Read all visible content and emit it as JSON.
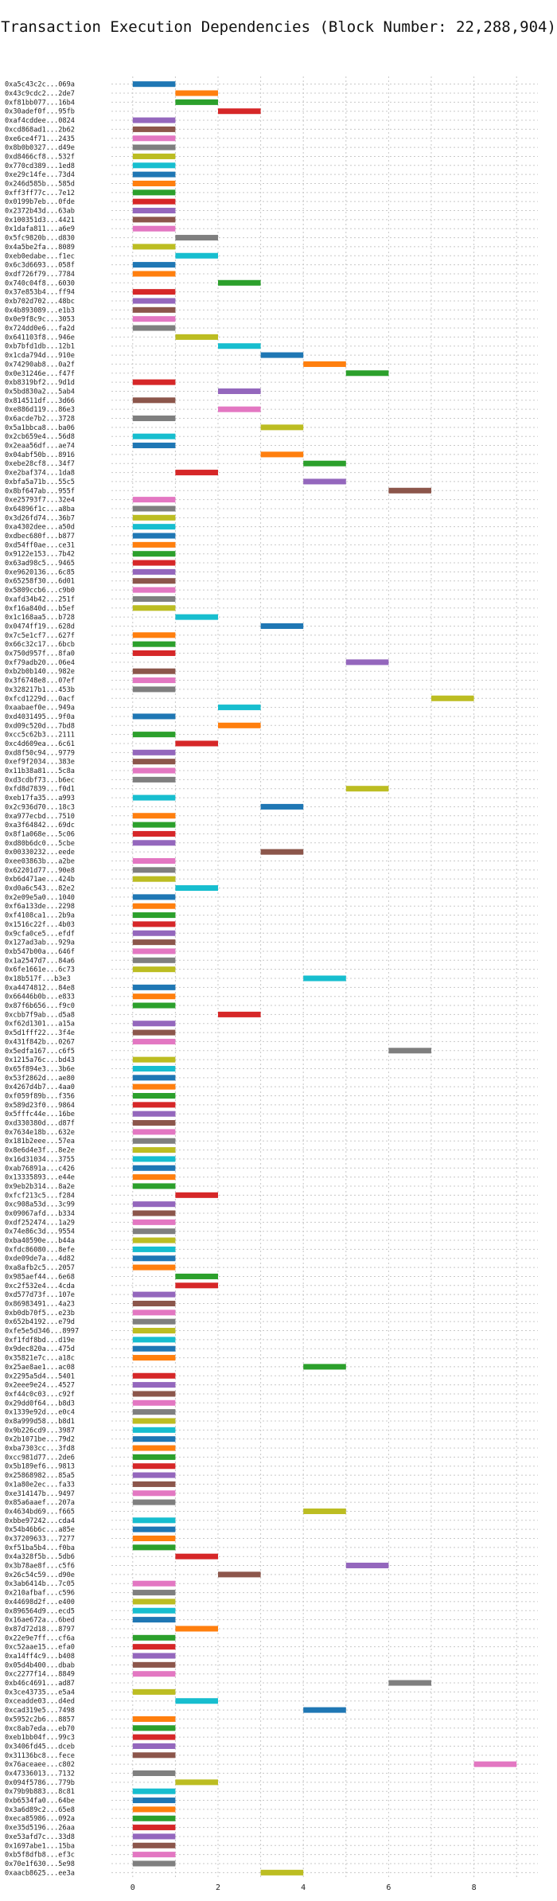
{
  "chart_data": {
    "type": "bar",
    "orientation": "horizontal-gantt",
    "title": "Transaction Execution Dependencies (Block Number: 22,288,904)",
    "xlabel": "",
    "ylabel": "",
    "xlim": [
      -0.5,
      9.5
    ],
    "xticks": [
      0,
      2,
      4,
      6,
      8
    ],
    "grid": true,
    "palette": [
      "#1f77b4",
      "#ff7f0e",
      "#2ca02c",
      "#d62728",
      "#9467bd",
      "#8c564b",
      "#e377c2",
      "#7f7f7f",
      "#bcbd22",
      "#17becf"
    ],
    "transactions": [
      {
        "tx": "0xa5c43c2c...069a",
        "start": 0
      },
      {
        "tx": "0x43c9cdc2...2de7",
        "start": 1
      },
      {
        "tx": "0xf81bb077...16b4",
        "start": 1
      },
      {
        "tx": "0x30adef0f...95fb",
        "start": 2
      },
      {
        "tx": "0xaf4cddee...0824",
        "start": 0
      },
      {
        "tx": "0xcd868ad1...2b62",
        "start": 0
      },
      {
        "tx": "0xe6ce4f71...2435",
        "start": 0
      },
      {
        "tx": "0x8b0b0327...d49e",
        "start": 0
      },
      {
        "tx": "0xd8466cf8...532f",
        "start": 0
      },
      {
        "tx": "0x770cd389...1ed8",
        "start": 0
      },
      {
        "tx": "0xe29c14fe...73d4",
        "start": 0
      },
      {
        "tx": "0x246d585b...585d",
        "start": 0
      },
      {
        "tx": "0xff3ff77c...7e12",
        "start": 0
      },
      {
        "tx": "0x0199b7eb...0fde",
        "start": 0
      },
      {
        "tx": "0x2372b43d...63ab",
        "start": 0
      },
      {
        "tx": "0x100351d3...4421",
        "start": 0
      },
      {
        "tx": "0x1dafa811...a6e9",
        "start": 0
      },
      {
        "tx": "0x5fc9820b...d830",
        "start": 1
      },
      {
        "tx": "0x4a5be2fa...8089",
        "start": 0
      },
      {
        "tx": "0xeb0edabe...f1ec",
        "start": 1
      },
      {
        "tx": "0x6c3d6693...058f",
        "start": 0
      },
      {
        "tx": "0xdf726f79...7784",
        "start": 0
      },
      {
        "tx": "0x740c04f8...6030",
        "start": 2
      },
      {
        "tx": "0x37e853b4...ff94",
        "start": 0
      },
      {
        "tx": "0xb702d702...48bc",
        "start": 0
      },
      {
        "tx": "0x4b893089...e1b3",
        "start": 0
      },
      {
        "tx": "0x0e9f8c9c...3053",
        "start": 0
      },
      {
        "tx": "0x724dd0e6...fa2d",
        "start": 0
      },
      {
        "tx": "0x641103f8...946e",
        "start": 1
      },
      {
        "tx": "0xb7bfd1db...12b1",
        "start": 2
      },
      {
        "tx": "0x1cda794d...910e",
        "start": 3
      },
      {
        "tx": "0x74290ab8...0a2f",
        "start": 4
      },
      {
        "tx": "0x0e31246e...f47f",
        "start": 5
      },
      {
        "tx": "0xb8319bf2...9d1d",
        "start": 0
      },
      {
        "tx": "0x5bd830a2...5ab4",
        "start": 2
      },
      {
        "tx": "0x814511df...3d66",
        "start": 0
      },
      {
        "tx": "0xe886d119...86e3",
        "start": 2
      },
      {
        "tx": "0x6acde7b2...3728",
        "start": 0
      },
      {
        "tx": "0x5a1bbca8...ba06",
        "start": 3
      },
      {
        "tx": "0x2cb659e4...56d8",
        "start": 0
      },
      {
        "tx": "0x2eaa56df...ae74",
        "start": 0
      },
      {
        "tx": "0x04abf50b...8916",
        "start": 3
      },
      {
        "tx": "0xebe28cf8...34f7",
        "start": 4
      },
      {
        "tx": "0xe2baf374...1da8",
        "start": 1
      },
      {
        "tx": "0xbfa5a71b...55c5",
        "start": 4
      },
      {
        "tx": "0x8bf647ab...955f",
        "start": 6
      },
      {
        "tx": "0xe25793f7...32e4",
        "start": 0
      },
      {
        "tx": "0x64896f1c...a8ba",
        "start": 0
      },
      {
        "tx": "0x3d26fd74...36b7",
        "start": 0
      },
      {
        "tx": "0xa4302dee...a50d",
        "start": 0
      },
      {
        "tx": "0xdbec680f...b877",
        "start": 0
      },
      {
        "tx": "0xd54ff0ae...ce31",
        "start": 0
      },
      {
        "tx": "0x9122e153...7b42",
        "start": 0
      },
      {
        "tx": "0x63ad98c5...9465",
        "start": 0
      },
      {
        "tx": "0xe9620136...6c85",
        "start": 0
      },
      {
        "tx": "0x65258f30...6d01",
        "start": 0
      },
      {
        "tx": "0x5809ccb6...c9b0",
        "start": 0
      },
      {
        "tx": "0xafd34b42...251f",
        "start": 0
      },
      {
        "tx": "0xf16a840d...b5ef",
        "start": 0
      },
      {
        "tx": "0x1c168aa5...b728",
        "start": 1
      },
      {
        "tx": "0x0474ff19...628d",
        "start": 3
      },
      {
        "tx": "0x7c5e1cf7...627f",
        "start": 0
      },
      {
        "tx": "0x66c32c17...6bcb",
        "start": 0
      },
      {
        "tx": "0x750d957f...8fa0",
        "start": 0
      },
      {
        "tx": "0xf79adb20...06e4",
        "start": 5
      },
      {
        "tx": "0xb2b0b140...982e",
        "start": 0
      },
      {
        "tx": "0x3f6748e8...07ef",
        "start": 0
      },
      {
        "tx": "0x328217b1...453b",
        "start": 0
      },
      {
        "tx": "0xfcd1229d...0acf",
        "start": 7
      },
      {
        "tx": "0xaabaef0e...949a",
        "start": 2
      },
      {
        "tx": "0xd4031495...9f0a",
        "start": 0
      },
      {
        "tx": "0xd09c520d...7bd8",
        "start": 2
      },
      {
        "tx": "0xcc5c62b3...2111",
        "start": 0
      },
      {
        "tx": "0xc4d609ea...6c61",
        "start": 1
      },
      {
        "tx": "0xd8f50c94...9779",
        "start": 0
      },
      {
        "tx": "0xef9f2034...383e",
        "start": 0
      },
      {
        "tx": "0x11b38a81...5c8a",
        "start": 0
      },
      {
        "tx": "0xd3cdbf73...b6ec",
        "start": 0
      },
      {
        "tx": "0xfd8d7839...f0d1",
        "start": 5
      },
      {
        "tx": "0xeb17fa35...a993",
        "start": 0
      },
      {
        "tx": "0x2c936d70...18c3",
        "start": 3
      },
      {
        "tx": "0xa977ecbd...7510",
        "start": 0
      },
      {
        "tx": "0xa3f64842...69dc",
        "start": 0
      },
      {
        "tx": "0x8f1a068e...5c06",
        "start": 0
      },
      {
        "tx": "0xd80b6dc0...5cbe",
        "start": 0
      },
      {
        "tx": "0x00330232...eede",
        "start": 3
      },
      {
        "tx": "0xee03863b...a2be",
        "start": 0
      },
      {
        "tx": "0x62201d77...90e8",
        "start": 0
      },
      {
        "tx": "0xb6d471ae...424b",
        "start": 0
      },
      {
        "tx": "0xd0a6c543...82e2",
        "start": 1
      },
      {
        "tx": "0x2e09e5a0...1040",
        "start": 0
      },
      {
        "tx": "0xf6a133de...2298",
        "start": 0
      },
      {
        "tx": "0xf4108ca1...2b9a",
        "start": 0
      },
      {
        "tx": "0x1516c22f...4b03",
        "start": 0
      },
      {
        "tx": "0x9cfa0ce5...efdf",
        "start": 0
      },
      {
        "tx": "0x127ad3ab...929a",
        "start": 0
      },
      {
        "tx": "0xb547b00a...646f",
        "start": 0
      },
      {
        "tx": "0x1a2547d7...84a6",
        "start": 0
      },
      {
        "tx": "0x6fe1661e...6c73",
        "start": 0
      },
      {
        "tx": "0x18b517f...b3e3",
        "start": 4
      },
      {
        "tx": "0xa4474812...84e8",
        "start": 0
      },
      {
        "tx": "0x66446b0b...e833",
        "start": 0
      },
      {
        "tx": "0x87f6b656...f9c0",
        "start": 0
      },
      {
        "tx": "0xcbb7f9ab...d5a8",
        "start": 2
      },
      {
        "tx": "0xf62d1301...a15a",
        "start": 0
      },
      {
        "tx": "0x5d1fff22...3f4e",
        "start": 0
      },
      {
        "tx": "0x431f842b...0267",
        "start": 0
      },
      {
        "tx": "0x5edfa167...c6f5",
        "start": 6
      },
      {
        "tx": "0x1215a76c...bd43",
        "start": 0
      },
      {
        "tx": "0x65f894e3...3b6e",
        "start": 0
      },
      {
        "tx": "0x53f2862d...ae80",
        "start": 0
      },
      {
        "tx": "0x4267d4b7...4aa0",
        "start": 0
      },
      {
        "tx": "0xf059f89b...f356",
        "start": 0
      },
      {
        "tx": "0x589d23f0...9864",
        "start": 0
      },
      {
        "tx": "0x5fffc44e...16be",
        "start": 0
      },
      {
        "tx": "0xd330380d...d87f",
        "start": 0
      },
      {
        "tx": "0x7634e18b...632e",
        "start": 0
      },
      {
        "tx": "0x181b2eee...57ea",
        "start": 0
      },
      {
        "tx": "0x8e6d4e3f...8e2e",
        "start": 0
      },
      {
        "tx": "0x16d31034...3755",
        "start": 0
      },
      {
        "tx": "0xab76891a...c426",
        "start": 0
      },
      {
        "tx": "0x13335893...e44e",
        "start": 0
      },
      {
        "tx": "0x9eb2b314...8a2e",
        "start": 0
      },
      {
        "tx": "0xfcf213c5...f284",
        "start": 1
      },
      {
        "tx": "0xc908a53d...3c99",
        "start": 0
      },
      {
        "tx": "0x09067afd...b334",
        "start": 0
      },
      {
        "tx": "0xdf252474...1a29",
        "start": 0
      },
      {
        "tx": "0x74e86c3d...9554",
        "start": 0
      },
      {
        "tx": "0xba40590e...b44a",
        "start": 0
      },
      {
        "tx": "0xfdc86080...8efe",
        "start": 0
      },
      {
        "tx": "0xde09de7a...4d82",
        "start": 0
      },
      {
        "tx": "0xa8afb2c5...2057",
        "start": 0
      },
      {
        "tx": "0x985aef44...6e68",
        "start": 1
      },
      {
        "tx": "0xc2f532e4...4cda",
        "start": 1
      },
      {
        "tx": "0xd577d73f...107e",
        "start": 0
      },
      {
        "tx": "0x86983491...4a23",
        "start": 0
      },
      {
        "tx": "0xb0db70f5...e23b",
        "start": 0
      },
      {
        "tx": "0x652b4192...e79d",
        "start": 0
      },
      {
        "tx": "0xfe5e5d346...8997",
        "start": 0
      },
      {
        "tx": "0xf1fdf8bd...d19e",
        "start": 0
      },
      {
        "tx": "0x9dec820a...475d",
        "start": 0
      },
      {
        "tx": "0x35821e7c...a18c",
        "start": 0
      },
      {
        "tx": "0x25ae8ae1...ac08",
        "start": 4
      },
      {
        "tx": "0x2295a5d4...5401",
        "start": 0
      },
      {
        "tx": "0x2eee9e24...4527",
        "start": 0
      },
      {
        "tx": "0xf44c0c03...c92f",
        "start": 0
      },
      {
        "tx": "0x29dd0f64...b8d3",
        "start": 0
      },
      {
        "tx": "0x1339e92d...e0c4",
        "start": 0
      },
      {
        "tx": "0x8a999d58...b8d1",
        "start": 0
      },
      {
        "tx": "0x9b226cd9...3987",
        "start": 0
      },
      {
        "tx": "0x2b1071be...79d2",
        "start": 0
      },
      {
        "tx": "0xba7303cc...3fd8",
        "start": 0
      },
      {
        "tx": "0xcc981d77...2de6",
        "start": 0
      },
      {
        "tx": "0x5b189ef6...9813",
        "start": 0
      },
      {
        "tx": "0x25868982...85a5",
        "start": 0
      },
      {
        "tx": "0x1a80e2ec...fa33",
        "start": 0
      },
      {
        "tx": "0xe314147b...9497",
        "start": 0
      },
      {
        "tx": "0x85a6aaef...207a",
        "start": 0
      },
      {
        "tx": "0x4634bd69...f665",
        "start": 4
      },
      {
        "tx": "0xbbe97242...cda4",
        "start": 0
      },
      {
        "tx": "0x54b46b6c...a85e",
        "start": 0
      },
      {
        "tx": "0x37209633...7277",
        "start": 0
      },
      {
        "tx": "0xf51ba5b4...f0ba",
        "start": 0
      },
      {
        "tx": "0x4a328f5b...5db6",
        "start": 1
      },
      {
        "tx": "0x3b78ae8f...c5f6",
        "start": 5
      },
      {
        "tx": "0x26c54c59...d90e",
        "start": 2
      },
      {
        "tx": "0x3ab6414b...7c05",
        "start": 0
      },
      {
        "tx": "0x210afbaf...c596",
        "start": 0
      },
      {
        "tx": "0x44698d2f...e400",
        "start": 0
      },
      {
        "tx": "0x896564d9...ecd5",
        "start": 0
      },
      {
        "tx": "0x16ae672a...6bed",
        "start": 0
      },
      {
        "tx": "0x87d72d18...8797",
        "start": 1
      },
      {
        "tx": "0x22e9e7ff...cf6a",
        "start": 0
      },
      {
        "tx": "0xc52aae15...efa0",
        "start": 0
      },
      {
        "tx": "0xa14ff4c9...b408",
        "start": 0
      },
      {
        "tx": "0x05d4b400...dbab",
        "start": 0
      },
      {
        "tx": "0xc2277f14...8849",
        "start": 0
      },
      {
        "tx": "0xb46c4691...ad87",
        "start": 6
      },
      {
        "tx": "0x3ce43735...e5a4",
        "start": 0
      },
      {
        "tx": "0xceadde03...d4ed",
        "start": 1
      },
      {
        "tx": "0xcad319e5...7498",
        "start": 4
      },
      {
        "tx": "0x5952c2b6...8857",
        "start": 0
      },
      {
        "tx": "0xc8ab7eda...eb70",
        "start": 0
      },
      {
        "tx": "0xeb1bb04f...99c3",
        "start": 0
      },
      {
        "tx": "0x3406fd45...dceb",
        "start": 0
      },
      {
        "tx": "0x31136bc8...fece",
        "start": 0
      },
      {
        "tx": "0x76aceaee...c802",
        "start": 8
      },
      {
        "tx": "0x47336013...7132",
        "start": 0
      },
      {
        "tx": "0x094f5786...779b",
        "start": 1
      },
      {
        "tx": "0x79b9b883...8c81",
        "start": 0
      },
      {
        "tx": "0xb6534fa0...64be",
        "start": 0
      },
      {
        "tx": "0x3a6d89c2...65e8",
        "start": 0
      },
      {
        "tx": "0xeca85986...092a",
        "start": 0
      },
      {
        "tx": "0xe35d5196...26aa",
        "start": 0
      },
      {
        "tx": "0xe53afd7c...33d8",
        "start": 0
      },
      {
        "tx": "0x1697abe1...15ba",
        "start": 0
      },
      {
        "tx": "0xb5f8dfb8...ef3c",
        "start": 0
      },
      {
        "tx": "0x70e1f630...5e98",
        "start": 0
      },
      {
        "tx": "0xaacb8625...ee3a",
        "start": 3
      }
    ]
  }
}
